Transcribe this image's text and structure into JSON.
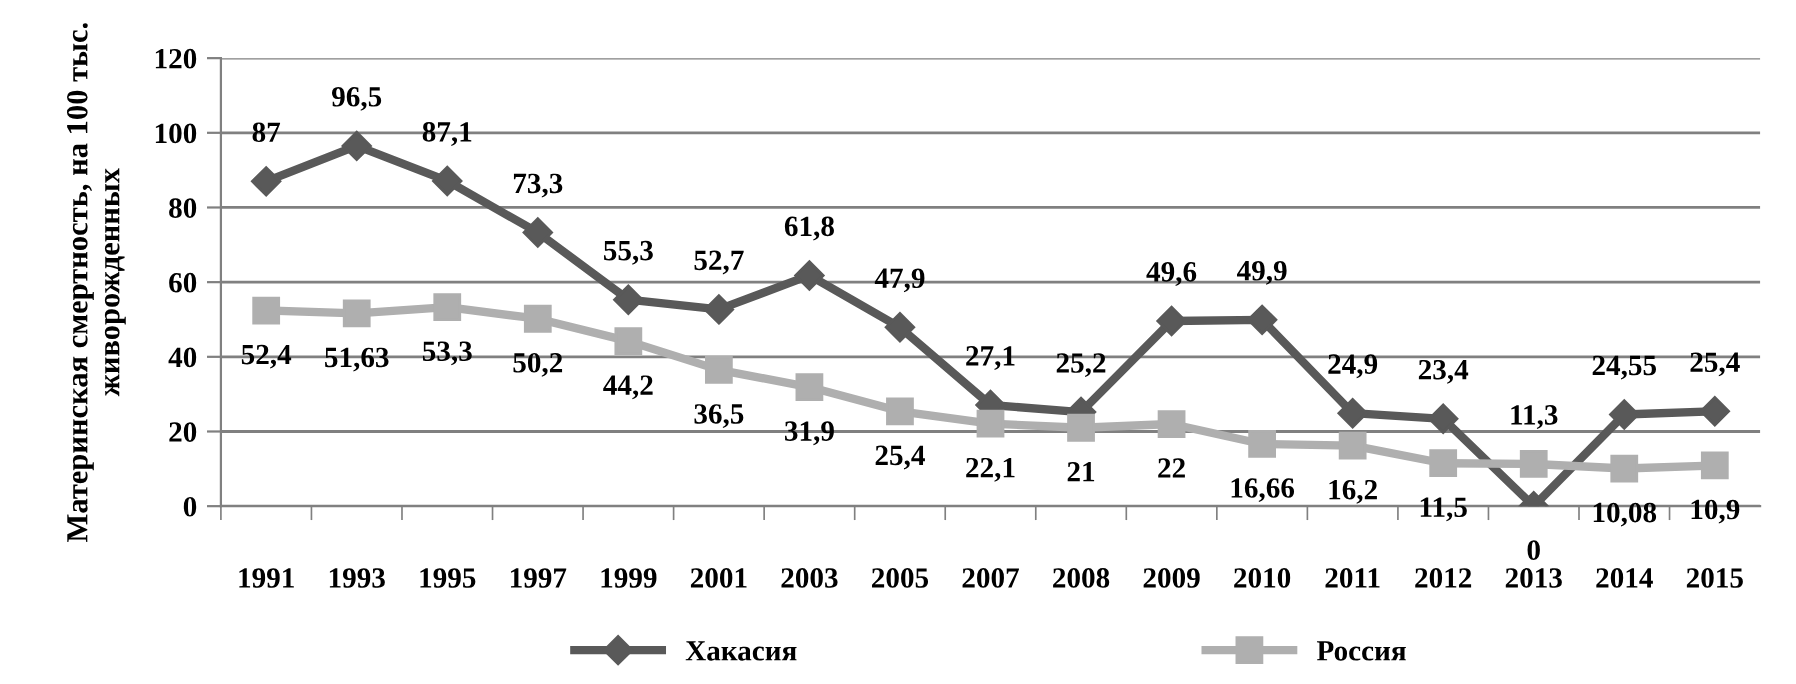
{
  "chart_data": {
    "type": "line",
    "ylabel": "Материнская смертность, на 100 тыс.\nживорожденных",
    "categories": [
      "1991",
      "1993",
      "1995",
      "1997",
      "1999",
      "2001",
      "2003",
      "2005",
      "2007",
      "2008",
      "2009",
      "2010",
      "2011",
      "2012",
      "2013",
      "2014",
      "2015"
    ],
    "series": [
      {
        "name": "Хакасия",
        "color": "#595959",
        "marker": "diamond",
        "values": [
          87,
          96.5,
          87.1,
          73.3,
          55.3,
          52.7,
          61.8,
          47.9,
          27.1,
          25.2,
          49.6,
          49.9,
          24.9,
          23.4,
          0,
          24.55,
          25.4
        ],
        "value_labels": [
          "87",
          "96,5",
          "87,1",
          "73,3",
          "55,3",
          "52,7",
          "61,8",
          "47,9",
          "27,1",
          "25,2",
          "49,6",
          "49,9",
          "24,9",
          "23,4",
          "0",
          "24,55",
          "25,4"
        ]
      },
      {
        "name": "Россия",
        "color": "#afafaf",
        "marker": "square",
        "values": [
          52.4,
          51.63,
          53.3,
          50.2,
          44.2,
          36.5,
          31.9,
          25.4,
          22.1,
          21,
          22,
          16.66,
          16.2,
          11.5,
          11.3,
          10.08,
          10.9
        ],
        "value_labels": [
          "52,4",
          "51,63",
          "53,3",
          "50,2",
          "44,2",
          "36,5",
          "31,9",
          "25,4",
          "22,1",
          "21",
          "22",
          "16,66",
          "16,2",
          "11,5",
          "11,3",
          "10,08",
          "10,9"
        ]
      }
    ],
    "ylim": [
      0,
      120
    ],
    "yticks": [
      0,
      20,
      40,
      60,
      80,
      100,
      120
    ],
    "grid": "y",
    "legend": "bottom"
  }
}
